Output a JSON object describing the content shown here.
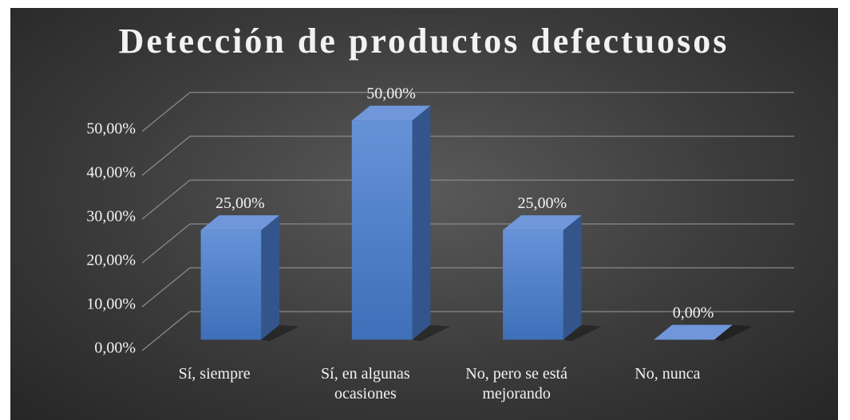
{
  "chart_data": {
    "type": "bar3d",
    "title": "Detección de productos defectuosos",
    "categories": [
      "Sí, siempre",
      "Sí, en algunas ocasiones",
      "No, pero se está mejorando",
      "No, nunca"
    ],
    "values": [
      25,
      50,
      25,
      0
    ],
    "value_labels": [
      "25,00%",
      "50,00%",
      "25,00%",
      "0,00%"
    ],
    "color": "#4f80c9",
    "ylim": [
      0,
      50
    ],
    "yticks": [
      {
        "value": 0,
        "label": "0,00%"
      },
      {
        "value": 10,
        "label": "10,00%"
      },
      {
        "value": 20,
        "label": "20,00%"
      },
      {
        "value": 30,
        "label": "30,00%"
      },
      {
        "value": 40,
        "label": "40,00%"
      },
      {
        "value": 50,
        "label": "50,00%"
      }
    ],
    "grid": true
  }
}
